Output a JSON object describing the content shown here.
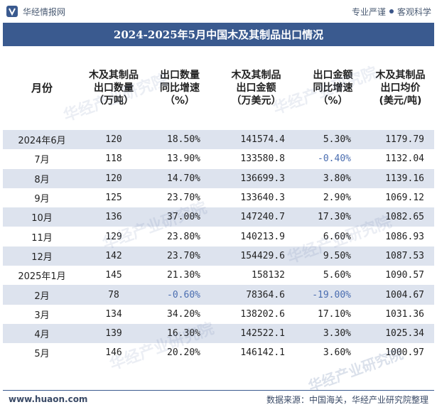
{
  "header": {
    "brand": "华经情报网",
    "slogan_left": "专业严谨",
    "slogan_right": "客观科学"
  },
  "title": "2024-2025年5月中国木及其制品出口情况",
  "columns": [
    "月份",
    "木及其制品\n出口数量\n（万吨）",
    "出口数量\n同比增速\n（%）",
    "木及其制品\n出口金额\n（万美元）",
    "出口金额\n同比增速\n（%）",
    "木及其制品\n出口均价\n(美元/吨)"
  ],
  "rows": [
    {
      "month": "2024年6月",
      "qty": "120",
      "qty_yoy": "18.50%",
      "amt": "141574.4",
      "amt_yoy": "5.30%",
      "price": "1179.79"
    },
    {
      "month": "7月",
      "qty": "118",
      "qty_yoy": "13.90%",
      "amt": "133580.8",
      "amt_yoy": "-0.40%",
      "price": "1132.04"
    },
    {
      "month": "8月",
      "qty": "120",
      "qty_yoy": "14.70%",
      "amt": "136699.3",
      "amt_yoy": "3.80%",
      "price": "1139.16"
    },
    {
      "month": "9月",
      "qty": "125",
      "qty_yoy": "23.70%",
      "amt": "133640.3",
      "amt_yoy": "2.90%",
      "price": "1069.12"
    },
    {
      "month": "10月",
      "qty": "136",
      "qty_yoy": "37.00%",
      "amt": "147240.7",
      "amt_yoy": "17.30%",
      "price": "1082.65"
    },
    {
      "month": "11月",
      "qty": "129",
      "qty_yoy": "23.80%",
      "amt": "140213.9",
      "amt_yoy": "6.60%",
      "price": "1086.93"
    },
    {
      "month": "12月",
      "qty": "142",
      "qty_yoy": "23.70%",
      "amt": "154429.6",
      "amt_yoy": "9.50%",
      "price": "1087.53"
    },
    {
      "month": "2025年1月",
      "qty": "145",
      "qty_yoy": "21.30%",
      "amt": "158132",
      "amt_yoy": "5.60%",
      "price": "1090.57"
    },
    {
      "month": "2月",
      "qty": "78",
      "qty_yoy": "-0.60%",
      "amt": "78364.6",
      "amt_yoy": "-19.00%",
      "price": "1004.67"
    },
    {
      "month": "3月",
      "qty": "134",
      "qty_yoy": "34.20%",
      "amt": "138202.6",
      "amt_yoy": "17.10%",
      "price": "1031.36"
    },
    {
      "month": "4月",
      "qty": "139",
      "qty_yoy": "16.30%",
      "amt": "142522.1",
      "amt_yoy": "3.30%",
      "price": "1025.34"
    },
    {
      "month": "5月",
      "qty": "146",
      "qty_yoy": "20.20%",
      "amt": "146142.1",
      "amt_yoy": "3.60%",
      "price": "1000.97"
    }
  ],
  "footer": {
    "site": "www.huaon.com",
    "source": "数据来源：中国海关，华经产业研究院整理"
  },
  "watermark": "华经产业研究院",
  "colors": {
    "title_bg": "#3a5a8f",
    "row_shade": "#dde3ee",
    "negative": "#4a6db0"
  }
}
